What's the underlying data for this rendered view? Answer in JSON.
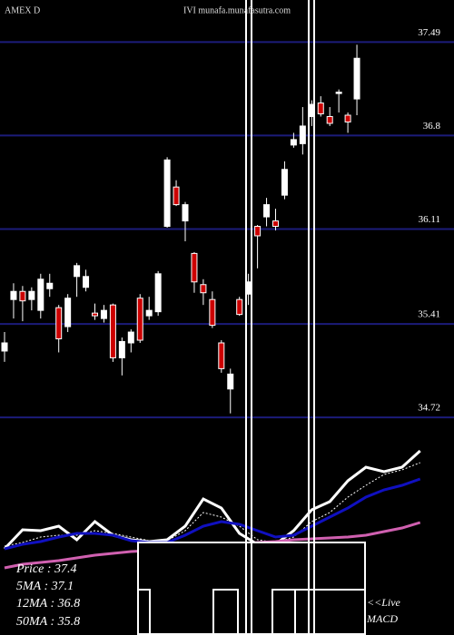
{
  "chart_data": {
    "type": "candlestick",
    "title": "AMEX  D",
    "source": "IVI munafa.munafasutra.com",
    "ylim": [
      34.42,
      37.8
    ],
    "yticks": [
      37.49,
      36.8,
      36.11,
      35.41,
      34.72
    ],
    "grid": true,
    "grid_color": "#1c1c7a",
    "up_color": "#ffffff",
    "down_color": "#cc0000",
    "wick_color": "#ffffff",
    "open": [
      35.21,
      35.59,
      35.65,
      35.59,
      35.51,
      35.67,
      35.53,
      35.39,
      35.76,
      35.68,
      35.49,
      35.45,
      35.55,
      35.16,
      35.27,
      35.6,
      35.47,
      35.5,
      36.13,
      36.42,
      36.17,
      35.93,
      35.7,
      35.59,
      35.27,
      34.93,
      35.59,
      35.63,
      36.13,
      36.2,
      36.17,
      36.36,
      36.73,
      36.74,
      36.94,
      37.04,
      36.94,
      37.11,
      36.95,
      37.07
    ],
    "high": [
      35.35,
      35.71,
      35.69,
      35.68,
      35.78,
      35.78,
      35.55,
      35.63,
      35.86,
      35.81,
      35.56,
      35.55,
      35.56,
      35.31,
      35.37,
      35.63,
      35.61,
      35.8,
      36.64,
      36.47,
      36.31,
      35.94,
      35.74,
      35.65,
      35.29,
      35.08,
      35.61,
      35.78,
      36.14,
      36.34,
      36.26,
      36.61,
      36.82,
      37.01,
      37.06,
      37.09,
      37.01,
      37.14,
      36.97,
      37.47
    ],
    "low": [
      35.13,
      35.45,
      35.43,
      35.51,
      35.45,
      35.61,
      35.2,
      35.35,
      35.61,
      35.65,
      35.44,
      35.42,
      35.13,
      35.03,
      35.2,
      35.27,
      35.44,
      35.47,
      36.12,
      36.28,
      36.02,
      35.64,
      35.55,
      35.38,
      35.05,
      34.75,
      35.47,
      35.55,
      35.82,
      36.13,
      36.1,
      36.33,
      36.71,
      36.66,
      36.87,
      36.94,
      36.87,
      36.97,
      36.82,
      36.95
    ],
    "close": [
      35.27,
      35.65,
      35.58,
      35.65,
      35.74,
      35.71,
      35.3,
      35.6,
      35.84,
      35.76,
      35.47,
      35.51,
      35.16,
      35.28,
      35.35,
      35.29,
      35.51,
      35.78,
      36.62,
      36.29,
      36.29,
      35.72,
      35.64,
      35.4,
      35.08,
      35.04,
      35.48,
      35.72,
      36.06,
      36.29,
      36.13,
      36.55,
      36.77,
      36.87,
      37.03,
      36.96,
      36.89,
      37.12,
      36.9,
      37.37
    ],
    "indicators": {
      "ylim": [
        -30,
        120
      ],
      "x": [
        0,
        2,
        4,
        6,
        8,
        10,
        12,
        14,
        16,
        18,
        20,
        22,
        24,
        26,
        28,
        30,
        32,
        34,
        36,
        38,
        40,
        42,
        44,
        46
      ],
      "series": [
        {
          "color": "#ffffff",
          "width": 3,
          "values": [
            5,
            26,
            25,
            30,
            15,
            35,
            20,
            15,
            13,
            15,
            30,
            60,
            50,
            22,
            10,
            10,
            25,
            48,
            57,
            80,
            95,
            90,
            95,
            113
          ]
        },
        {
          "color": "#ffffff",
          "width": 1,
          "dashed": true,
          "values": [
            8,
            12,
            18,
            20,
            20,
            25,
            22,
            18,
            14,
            14,
            25,
            45,
            40,
            30,
            15,
            12,
            18,
            35,
            45,
            62,
            75,
            87,
            92,
            100
          ]
        },
        {
          "color": "#1010c0",
          "width": 3,
          "values": [
            5,
            10,
            13,
            18,
            22,
            22,
            20,
            14,
            12,
            12,
            20,
            30,
            35,
            32,
            25,
            18,
            20,
            30,
            40,
            50,
            62,
            70,
            75,
            82
          ]
        },
        {
          "color": "#d060b0",
          "width": 3,
          "values": [
            -16,
            -12,
            -10,
            -8,
            -5,
            -2,
            0,
            2,
            3,
            4,
            6,
            7,
            9,
            10,
            12,
            13,
            15,
            16,
            17,
            18,
            20,
            24,
            28,
            34
          ]
        }
      ]
    },
    "annotations": [
      "Price  : 37.4",
      "5MA : 37.1",
      "12MA : 36.8",
      "50MA : 35.8"
    ],
    "live_label": "<<Live",
    "macd_label": "MACD"
  }
}
